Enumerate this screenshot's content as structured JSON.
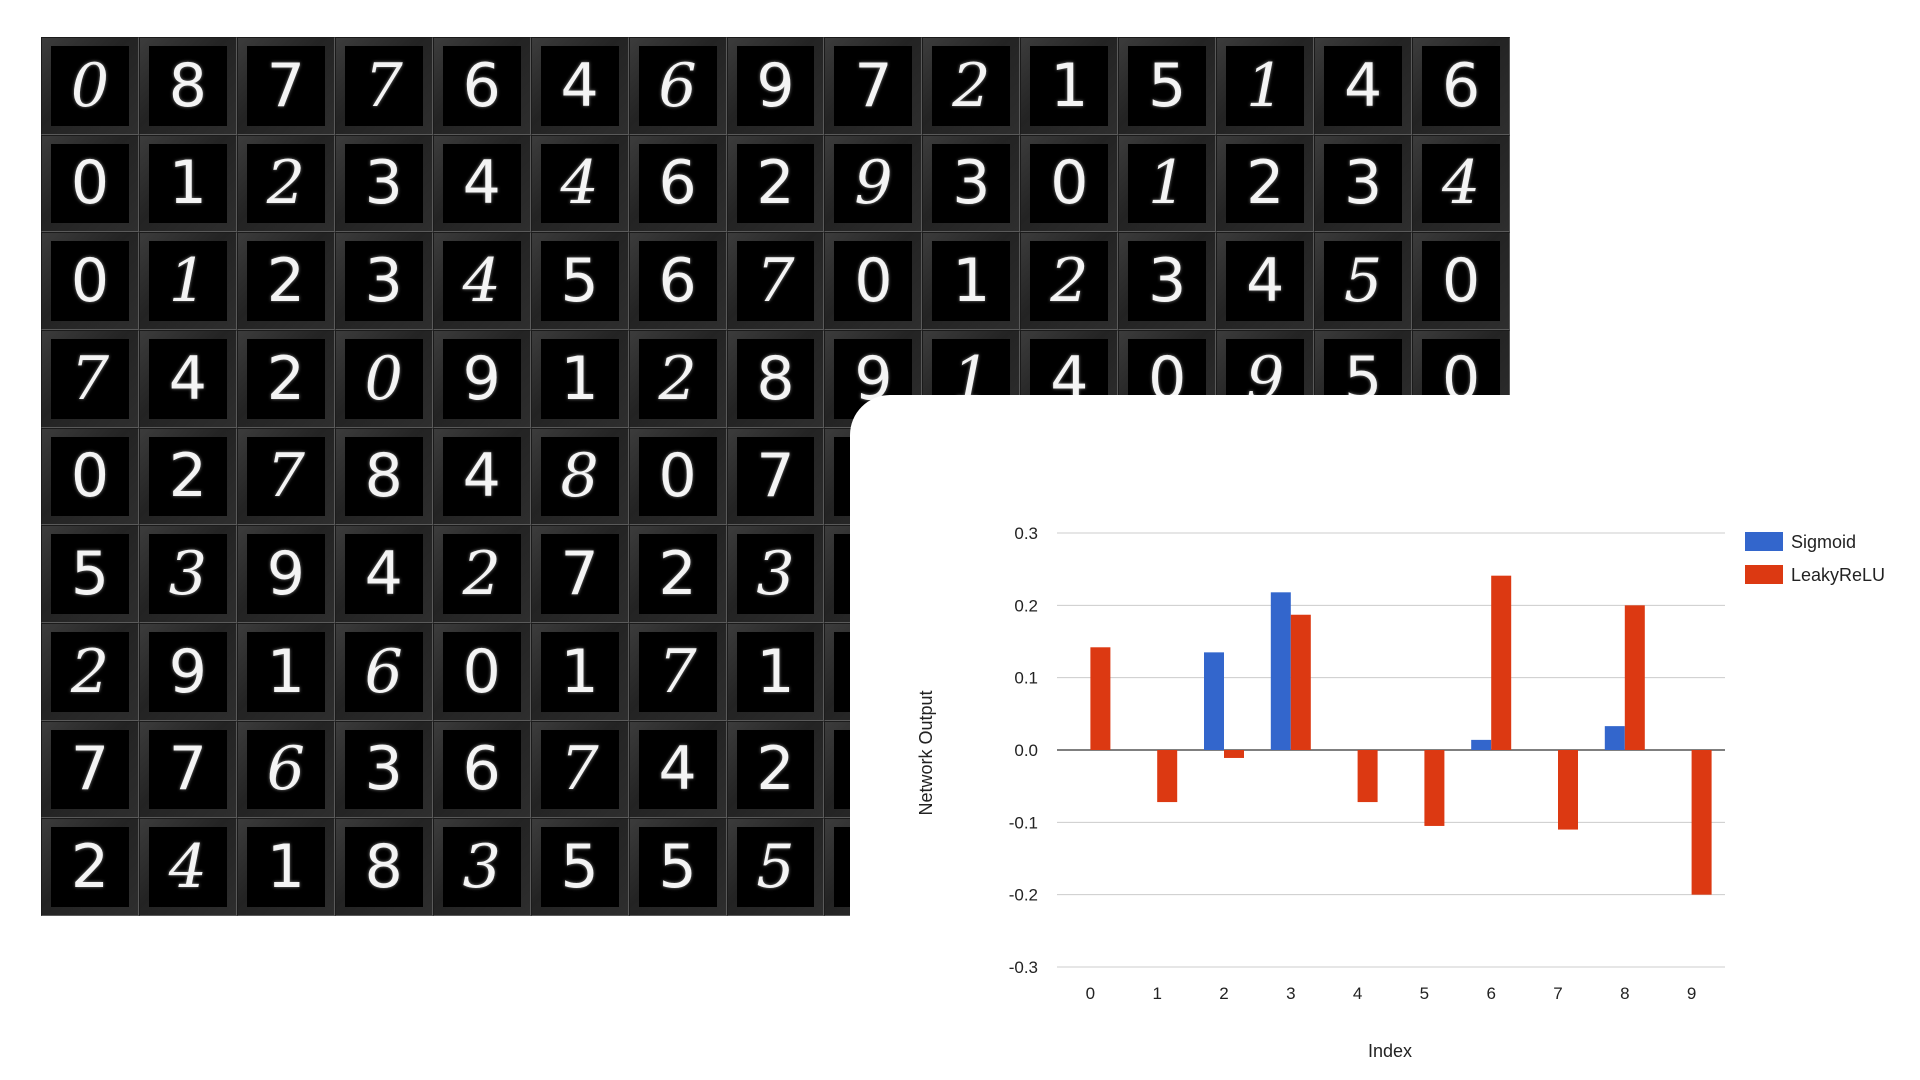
{
  "digit_panel": {
    "rows": [
      [
        "0",
        "8",
        "7",
        "7",
        "6",
        "4",
        "6",
        "9",
        "7",
        "2",
        "1",
        "5",
        "1",
        "4",
        "6"
      ],
      [
        "0",
        "1",
        "2",
        "3",
        "4",
        "4",
        "6",
        "2",
        "9",
        "3",
        "0",
        "1",
        "2",
        "3",
        "4"
      ],
      [
        "0",
        "1",
        "2",
        "3",
        "4",
        "5",
        "6",
        "7",
        "0",
        "1",
        "2",
        "3",
        "4",
        "5",
        "0"
      ],
      [
        "7",
        "4",
        "2",
        "0",
        "9",
        "1",
        "2",
        "8",
        "9",
        "1",
        "4",
        "0",
        "9",
        "5",
        "0"
      ],
      [
        "0",
        "2",
        "7",
        "8",
        "4",
        "8",
        "0",
        "7",
        "",
        "",
        "",
        "",
        "",
        "",
        ""
      ],
      [
        "5",
        "3",
        "9",
        "4",
        "2",
        "7",
        "2",
        "3",
        "",
        "",
        "",
        "",
        "",
        "",
        ""
      ],
      [
        "2",
        "9",
        "1",
        "6",
        "0",
        "1",
        "7",
        "1",
        "",
        "",
        "",
        "",
        "",
        "",
        ""
      ],
      [
        "7",
        "7",
        "6",
        "3",
        "6",
        "7",
        "4",
        "2",
        "",
        "",
        "",
        "",
        "",
        "",
        ""
      ],
      [
        "2",
        "4",
        "1",
        "8",
        "3",
        "5",
        "5",
        "5",
        "",
        "",
        "",
        "",
        "",
        "",
        ""
      ]
    ]
  },
  "chart_data": {
    "type": "bar",
    "categories": [
      "0",
      "1",
      "2",
      "3",
      "4",
      "5",
      "6",
      "7",
      "8",
      "9"
    ],
    "series": [
      {
        "name": "Sigmoid",
        "color": "#3366cc",
        "values": [
          0.0,
          0.0,
          0.135,
          0.218,
          0.0,
          0.0,
          0.014,
          0.0,
          0.033,
          0.0
        ]
      },
      {
        "name": "LeakyReLU",
        "color": "#dc3912",
        "values": [
          0.142,
          -0.072,
          -0.011,
          0.187,
          -0.072,
          -0.105,
          0.241,
          -0.11,
          0.2,
          -0.2
        ]
      }
    ],
    "title": "",
    "xlabel": "Index",
    "ylabel": "Network Output",
    "ylim": [
      -0.3,
      0.3
    ],
    "yticks": [
      "0.3",
      "0.2",
      "0.1",
      "0.0",
      "-0.1",
      "-0.2",
      "-0.3"
    ],
    "ytick_values": [
      0.3,
      0.2,
      0.1,
      0.0,
      -0.1,
      -0.2,
      -0.3
    ],
    "grid": true,
    "legend_position": "right"
  }
}
